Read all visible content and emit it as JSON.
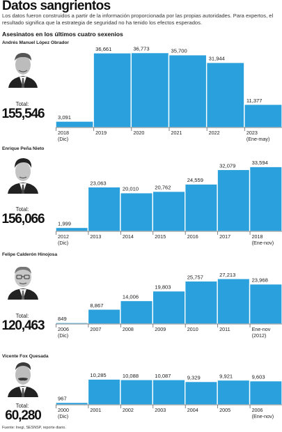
{
  "header": {
    "title": "Datos sangrientos",
    "intro": "Los datos fueron construidos a partir de la información proporcionada por las propias autoridades. Para expertos, el resultado significa que la estrategia de seguridad no ha tenido los efectos esperados.",
    "subtitle": "Asesinatos en los últimos cuatro sexenios"
  },
  "colors": {
    "bar": "#2aa1dc",
    "bar_border": "#ffffff",
    "axis": "#666666"
  },
  "panels": [
    {
      "president": "Andrés Manuel López Obrador",
      "total_label": "Total:",
      "total": "155,546"
    },
    {
      "president": "Enrique Peña Nieto",
      "total_label": "Total:",
      "total": "156,066"
    },
    {
      "president": "Felipe Calderón Hinojosa",
      "total_label": "Total:",
      "total": "120,463"
    },
    {
      "president": "Vicente Fox Quesada",
      "total_label": "Total:",
      "total": "60,280"
    }
  ],
  "chart_data": [
    {
      "type": "bar",
      "title": "Andrés Manuel López Obrador",
      "categories": [
        [
          "2018",
          "(Dic)"
        ],
        [
          "2019"
        ],
        [
          "2020"
        ],
        [
          "2021"
        ],
        [
          "2022"
        ],
        [
          "2023",
          "(Ene-may)"
        ]
      ],
      "values": [
        3091,
        36661,
        36773,
        35700,
        31944,
        11377
      ],
      "value_labels": [
        "3,091",
        "36,661",
        "36,773",
        "35,700",
        "31,944",
        "11,377"
      ],
      "ylim": [
        0,
        38000
      ]
    },
    {
      "type": "bar",
      "title": "Enrique Peña Nieto",
      "categories": [
        [
          "2012",
          "(Dic)"
        ],
        [
          "2013"
        ],
        [
          "2014"
        ],
        [
          "2015"
        ],
        [
          "2016"
        ],
        [
          "2017"
        ],
        [
          "2018",
          "(Ene-nov)"
        ]
      ],
      "values": [
        1999,
        23063,
        20010,
        20762,
        24559,
        32079,
        33594
      ],
      "value_labels": [
        "1,999",
        "23,063",
        "20,010",
        "20,762",
        "24,559",
        "32,079",
        "33,594"
      ],
      "ylim": [
        0,
        38000
      ]
    },
    {
      "type": "bar",
      "title": "Felipe Calderón Hinojosa",
      "categories": [
        [
          "2006",
          "(Dic)"
        ],
        [
          "2007"
        ],
        [
          "2008"
        ],
        [
          "2009"
        ],
        [
          "2010"
        ],
        [
          "2011"
        ],
        [
          "Ene-nov",
          "(2012)"
        ]
      ],
      "values": [
        849,
        8867,
        14006,
        19803,
        25757,
        27213,
        23968
      ],
      "value_labels": [
        "849",
        "8,867",
        "14,006",
        "19,803",
        "25,757",
        "27,213",
        "23,968"
      ],
      "ylim": [
        0,
        38000
      ]
    },
    {
      "type": "bar",
      "title": "Vicente Fox Quesada",
      "categories": [
        [
          "2000",
          "(Dic)"
        ],
        [
          "2001"
        ],
        [
          "2002"
        ],
        [
          "2003"
        ],
        [
          "2004"
        ],
        [
          "2005"
        ],
        [
          "2006",
          "(Ene-nov)"
        ]
      ],
      "values": [
        967,
        10285,
        10088,
        10087,
        9329,
        9921,
        9603
      ],
      "value_labels": [
        "967",
        "10,285",
        "10,088",
        "10,087",
        "9,329",
        "9,921",
        "9,603"
      ],
      "ylim": [
        0,
        38000
      ]
    }
  ],
  "footer": {
    "source": "Fuente: Inegi, SESNSP, reporte diario."
  }
}
